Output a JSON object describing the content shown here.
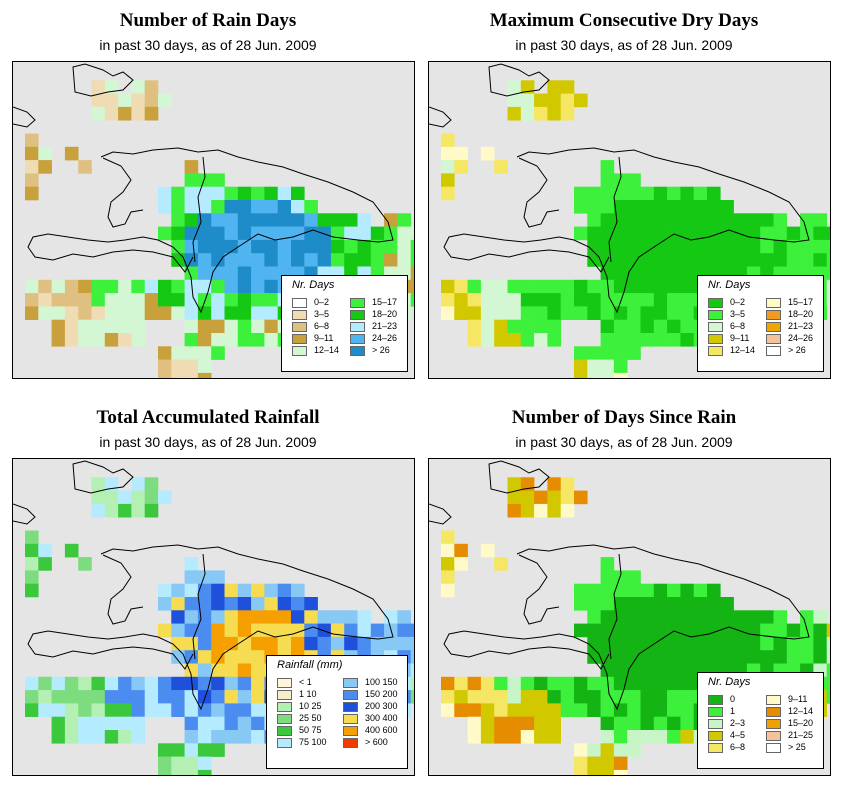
{
  "panels": [
    {
      "title": "Number of Rain Days",
      "subtitle": "in past 30 days, as of  28 Jun. 2009",
      "legend_title": "Nr. Days",
      "palette": [
        "#ffffff",
        "#f0dcb4",
        "#e0c080",
        "#c8a03c",
        "#d2f7d2",
        "#3cf03c",
        "#14c814",
        "#b4ebff",
        "#50b4f0",
        "#1e8cc8"
      ],
      "legend_labels": [
        "0–2",
        "3–5",
        "6–8",
        "9–11",
        "12–14",
        "15–17",
        "18–20",
        "21–23",
        "24–26",
        "> 26"
      ]
    },
    {
      "title": "Maximum Consecutive Dry Days",
      "subtitle": "in past 30 days, as of  28 Jun. 2009",
      "legend_title": "Nr. Days",
      "palette": [
        "#14c814",
        "#3cf03c",
        "#d2f7d2",
        "#d2c800",
        "#f5e664",
        "#fffac8",
        "#f09b1e",
        "#f0a500",
        "#f5c39b",
        "#ffffff"
      ],
      "legend_labels": [
        "0–2",
        "3–5",
        "6–8",
        "9–11",
        "12–14",
        "15–17",
        "18–20",
        "21–23",
        "24–26",
        "> 26"
      ]
    },
    {
      "title": "Total Accumulated Rainfall",
      "subtitle": "in past 30 days, as of  28 Jun. 2009",
      "legend_title": "Rainfall (mm)",
      "palette": [
        "#fff5dc",
        "#f5f0c8",
        "#b4f0b4",
        "#7ddc7d",
        "#3cc83c",
        "#b4ebff",
        "#87c8f5",
        "#4b8cf0",
        "#1e50dc",
        "#f5dc50",
        "#f5a000",
        "#f03c00"
      ],
      "legend_labels": [
        "< 1",
        "1   10",
        "10   25",
        "25   50",
        "50   75",
        "75  100",
        "100  150",
        "150  200",
        "200  300",
        "300  400",
        "400  600",
        "> 600"
      ]
    },
    {
      "title": "Number of Days Since Rain",
      "subtitle": "in past 30 days, as of  28 Jun. 2009",
      "legend_title": "Nr. Days",
      "palette": [
        "#14b414",
        "#3cf03c",
        "#c8f5c8",
        "#d2c800",
        "#f5e664",
        "#fffac8",
        "#e68c00",
        "#f0a000",
        "#f5c39b",
        "#ffffff"
      ],
      "legend_labels": [
        "0",
        "1",
        "2–3",
        "4–5",
        "6–8",
        "9–11",
        "12–14",
        "15–20",
        "21–25",
        "> 25"
      ]
    }
  ]
}
